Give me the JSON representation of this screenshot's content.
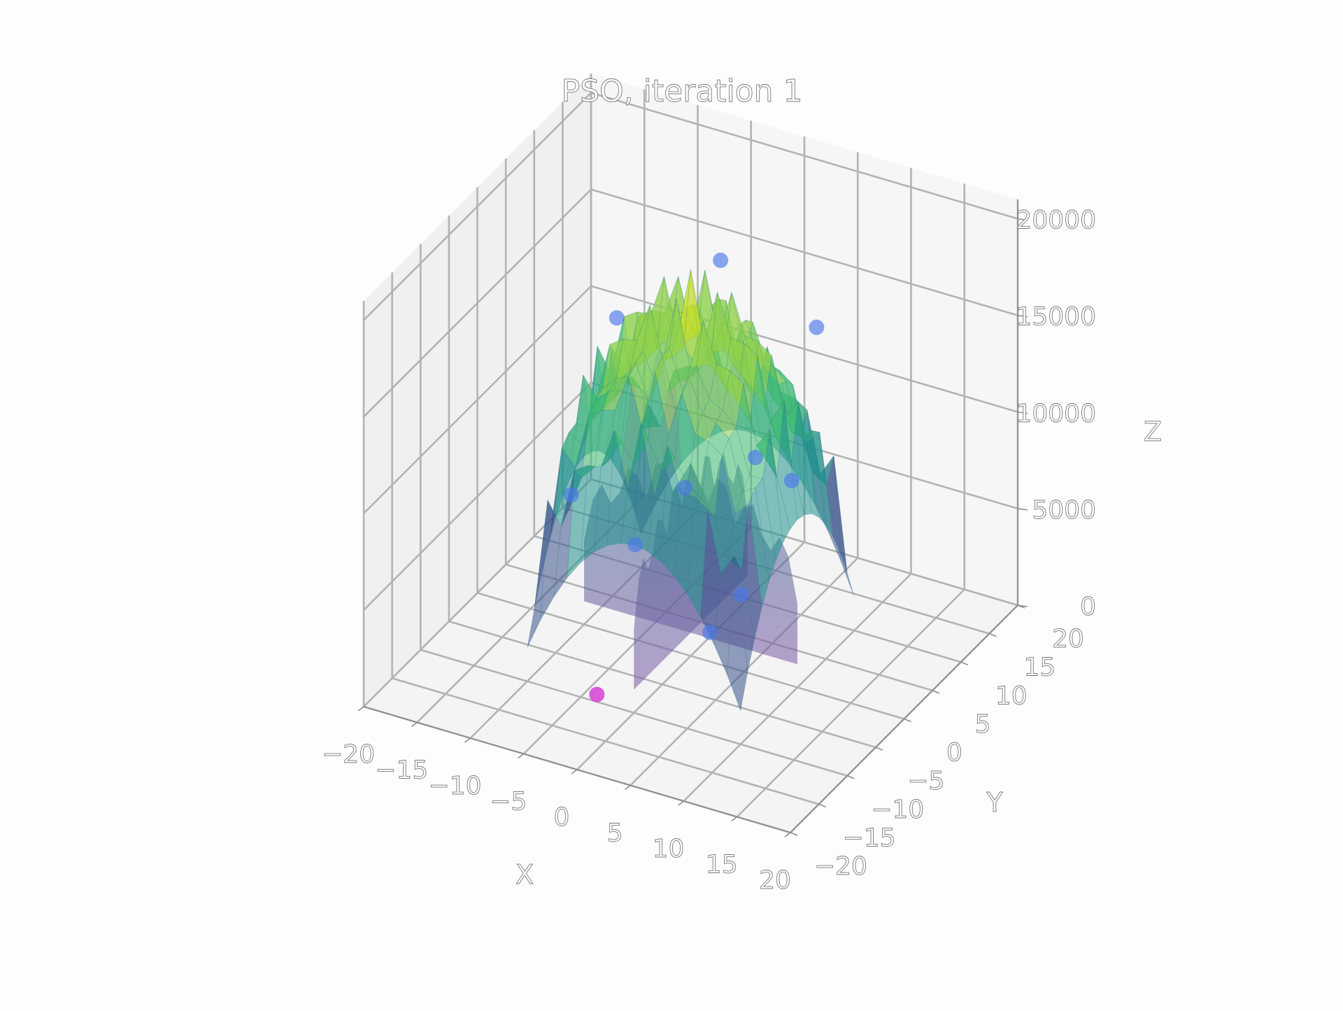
{
  "chart_data": {
    "type": "scatter",
    "title": "PSO, iteration 1",
    "xlabel": "X",
    "ylabel": "Y",
    "zlabel": "Z",
    "x_ticks": [
      "−20",
      "−15",
      "−10",
      "−5",
      "0",
      "5",
      "10",
      "15",
      "20"
    ],
    "y_ticks": [
      "−20",
      "−15",
      "−10",
      "−5",
      "0",
      "5",
      "10",
      "15",
      "20"
    ],
    "z_ticks": [
      "0",
      "5000",
      "10000",
      "15000",
      "20000"
    ],
    "xlim": [
      -20,
      20
    ],
    "ylim": [
      -20,
      20
    ],
    "zlim": [
      0,
      21000
    ],
    "grid": true,
    "surface": {
      "description_colormap": "viridis",
      "extent_xy": [
        -10,
        10
      ],
      "peak_z": 20000
    },
    "colors": {
      "particles": "#4a78e8",
      "global_best": "#d63fd6"
    },
    "series": [
      {
        "name": "",
        "points": [
          {
            "x": -2,
            "y": 9,
            "z": 17500
          },
          {
            "x": 7,
            "y": 9,
            "z": 15500
          },
          {
            "x": -8,
            "y": 2,
            "z": 15600
          },
          {
            "x": 10,
            "y": -1,
            "z": 11000
          },
          {
            "x": -8,
            "y": -6,
            "z": 8800
          },
          {
            "x": -2,
            "y": -6,
            "z": 7200
          },
          {
            "x": 0,
            "y": -1,
            "z": 9000
          },
          {
            "x": 5,
            "y": 2,
            "z": 10500
          },
          {
            "x": 9,
            "y": -8,
            "z": 7000
          },
          {
            "x": 5,
            "y": -6,
            "z": 3800
          }
        ]
      },
      {
        "name": "",
        "points": [
          {
            "x": -4,
            "y": -9,
            "z": 0
          }
        ]
      }
    ]
  }
}
